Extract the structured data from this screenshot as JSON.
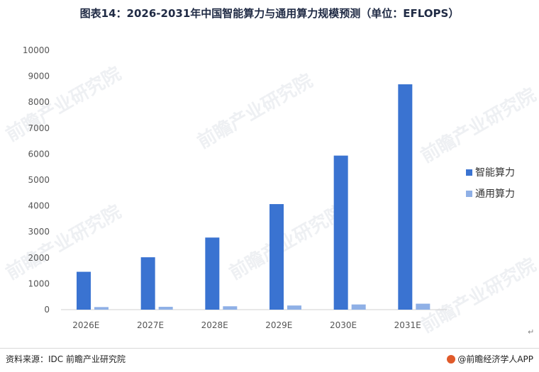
{
  "title": "图表14：2026-2031年中国智能算力与通用算力规模预测（单位：EFLOPS）",
  "source": "资料来源：IDC  前瞻产业研究院",
  "brand": "@前瞻经济学人APP",
  "watermark_text": "前瞻产业研究院",
  "return_mark": "↵",
  "colors": {
    "intelligent": "#3a73d1",
    "general": "#8fb0e6"
  },
  "chart_data": {
    "type": "bar",
    "categories": [
      "2026E",
      "2027E",
      "2028E",
      "2029E",
      "2030E",
      "2031E"
    ],
    "series": [
      {
        "name": "智能算力",
        "values": [
          1460,
          2020,
          2780,
          4070,
          5940,
          8690
        ]
      },
      {
        "name": "通用算力",
        "values": [
          100,
          110,
          130,
          160,
          200,
          230
        ]
      }
    ],
    "yticks": [
      0,
      1000,
      2000,
      3000,
      4000,
      5000,
      6000,
      7000,
      8000,
      9000,
      10000
    ],
    "ylim": [
      0,
      10000
    ],
    "grid": false,
    "legend_position": "right"
  }
}
